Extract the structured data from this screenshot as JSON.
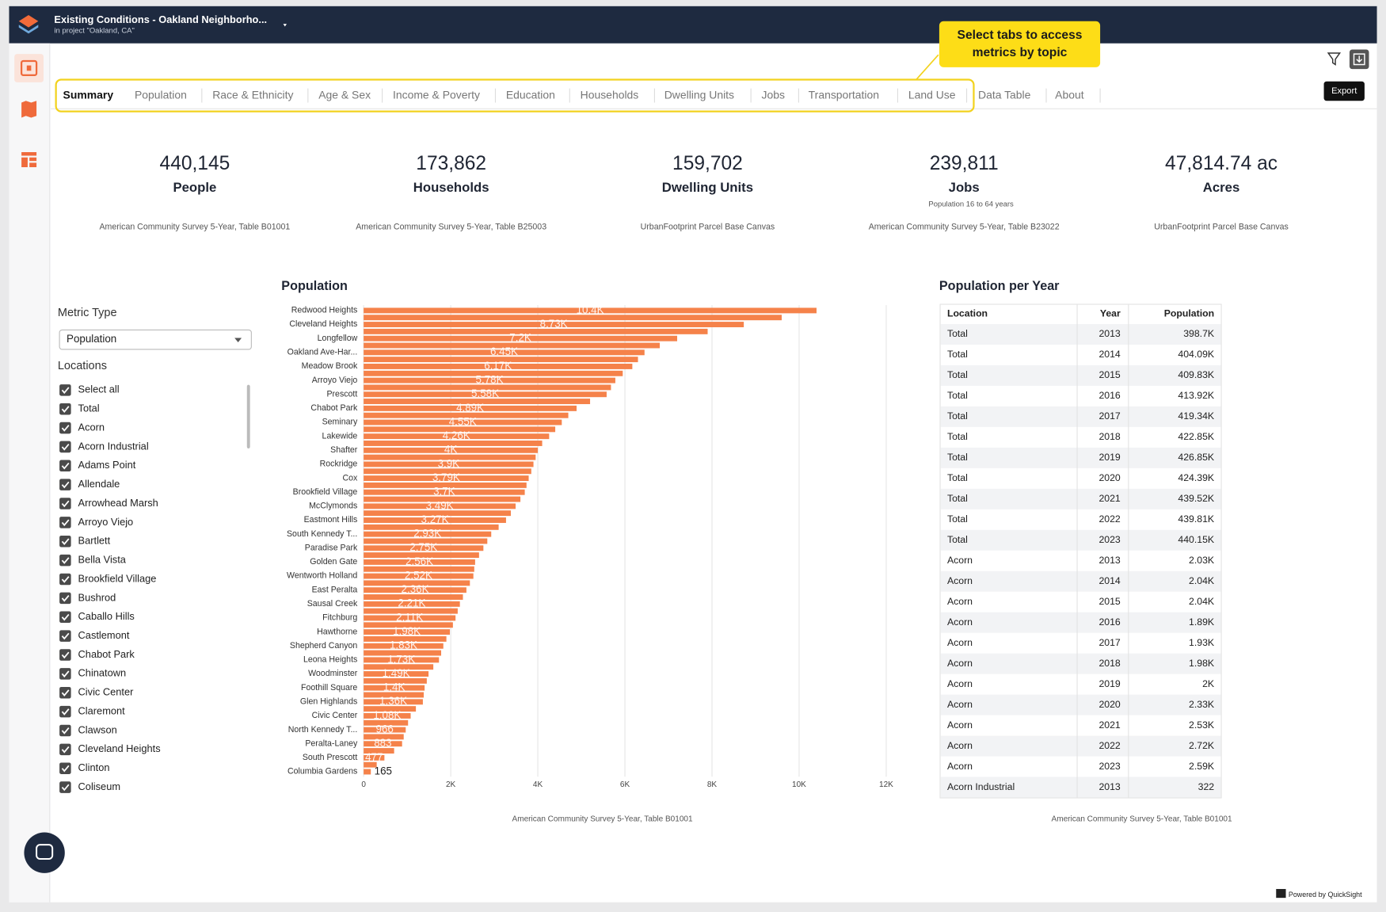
{
  "header": {
    "title": "Existing Conditions - Oakland Neighborho...",
    "subtitle": "in project \"Oakland, CA\""
  },
  "callout": [
    "Select tabs to access",
    "metrics by topic"
  ],
  "tabs": [
    "Summary",
    "Population",
    "Race & Ethnicity",
    "Age & Sex",
    "Income & Poverty",
    "Education",
    "Households",
    "Dwelling Units",
    "Jobs",
    "Transportation",
    "Land Use",
    "Data Table",
    "About"
  ],
  "tooltip": "Export",
  "kpis": [
    {
      "value": "440,145",
      "label": "People",
      "source": "American Community Survey 5-Year, Table B01001"
    },
    {
      "value": "173,862",
      "label": "Households",
      "source": "American Community Survey 5-Year, Table B25003"
    },
    {
      "value": "159,702",
      "label": "Dwelling Units",
      "source": "UrbanFootprint Parcel Base Canvas"
    },
    {
      "value": "239,811",
      "label": "Jobs",
      "note": "Population 16 to 64 years",
      "source": "American Community Survey 5-Year, Table B23022"
    },
    {
      "value": "47,814.74 ac",
      "label": "Acres",
      "source": "UrbanFootprint Parcel Base Canvas"
    }
  ],
  "filters": {
    "metric_label": "Metric Type",
    "metric_value": "Population",
    "locations_label": "Locations",
    "locations": [
      "Select all",
      "Total",
      "Acorn",
      "Acorn Industrial",
      "Adams Point",
      "Allendale",
      "Arrowhead Marsh",
      "Arroyo Viejo",
      "Bartlett",
      "Bella Vista",
      "Brookfield Village",
      "Bushrod",
      "Caballo Hills",
      "Castlemont",
      "Chabot Park",
      "Chinatown",
      "Civic Center",
      "Claremont",
      "Clawson",
      "Cleveland Heights",
      "Clinton",
      "Coliseum"
    ]
  },
  "chart_data": {
    "type": "barh",
    "title": "Population",
    "color": "#f5824a",
    "categories": [
      "Redwood Heights",
      null,
      "Cleveland Heights",
      null,
      "Longfellow",
      null,
      "Oakland Ave-Har...",
      null,
      "Meadow Brook",
      null,
      "Arroyo Viejo",
      null,
      "Prescott",
      null,
      "Chabot Park",
      null,
      "Seminary",
      null,
      "Lakewide",
      null,
      "Shafter",
      null,
      "Rockridge",
      null,
      "Cox",
      null,
      "Brookfield Village",
      null,
      "McClymonds",
      null,
      "Eastmont Hills",
      null,
      "South Kennedy T...",
      null,
      "Paradise Park",
      null,
      "Golden Gate",
      null,
      "Wentworth Holland",
      null,
      "East Peralta",
      null,
      "Sausal Creek",
      null,
      "Fitchburg",
      null,
      "Hawthorne",
      null,
      "Shepherd Canyon",
      null,
      "Leona Heights",
      null,
      "Woodminster",
      null,
      "Foothill Square",
      null,
      "Glen Highlands",
      null,
      "Civic Center",
      null,
      "North Kennedy T...",
      null,
      "Peralta-Laney",
      null,
      "South Prescott",
      null,
      "Columbia Gardens"
    ],
    "values": [
      10400,
      9600,
      8730,
      7900,
      7200,
      6800,
      6450,
      6300,
      6170,
      5950,
      5780,
      5680,
      5580,
      5200,
      4890,
      4700,
      4550,
      4400,
      4260,
      4100,
      4000,
      3950,
      3900,
      3850,
      3790,
      3740,
      3700,
      3600,
      3490,
      3380,
      3270,
      3100,
      2930,
      2840,
      2750,
      2650,
      2560,
      2540,
      2520,
      2440,
      2360,
      2280,
      2210,
      2160,
      2110,
      2050,
      1980,
      1900,
      1830,
      1780,
      1730,
      1600,
      1490,
      1450,
      1400,
      1380,
      1360,
      1200,
      1080,
      1020,
      966,
      920,
      883,
      700,
      477,
      300,
      165
    ],
    "value_labels": [
      "10.4K",
      null,
      "8.73K",
      null,
      "7.2K",
      null,
      "6.45K",
      null,
      "6.17K",
      null,
      "5.78K",
      null,
      "5.58K",
      null,
      "4.89K",
      null,
      "4.55K",
      null,
      "4.26K",
      null,
      "4K",
      null,
      "3.9K",
      null,
      "3.79K",
      null,
      "3.7K",
      null,
      "3.49K",
      null,
      "3.27K",
      null,
      "2.93K",
      null,
      "2.75K",
      null,
      "2.56K",
      null,
      "2.52K",
      null,
      "2.36K",
      null,
      "2.21K",
      null,
      "2.11K",
      null,
      "1.98K",
      null,
      "1.83K",
      null,
      "1.73K",
      null,
      "1.49K",
      null,
      "1.4K",
      null,
      "1.36K",
      null,
      "1.08K",
      null,
      "966",
      null,
      "883",
      null,
      "477",
      null,
      "165"
    ],
    "xlim": [
      0,
      12000
    ],
    "xticks": [
      0,
      {
        "value": 2000,
        "label": "2K"
      },
      {
        "value": 4000,
        "label": "4K"
      },
      {
        "value": 6000,
        "label": "6K"
      },
      {
        "value": 8000,
        "label": "8K"
      },
      {
        "value": 10000,
        "label": "10K"
      },
      {
        "value": 12000,
        "label": "12K"
      }
    ],
    "grid": true,
    "source": "American Community Survey 5-Year, Table B01001"
  },
  "table": {
    "title": "Population per Year",
    "header": [
      "Location",
      "Year",
      "Population"
    ],
    "rows": [
      [
        "Total",
        2013,
        "398.7K"
      ],
      [
        "Total",
        2014,
        "404.09K"
      ],
      [
        "Total",
        2015,
        "409.83K"
      ],
      [
        "Total",
        2016,
        "413.92K"
      ],
      [
        "Total",
        2017,
        "419.34K"
      ],
      [
        "Total",
        2018,
        "422.85K"
      ],
      [
        "Total",
        2019,
        "426.85K"
      ],
      [
        "Total",
        2020,
        "424.39K"
      ],
      [
        "Total",
        2021,
        "439.52K"
      ],
      [
        "Total",
        2022,
        "439.81K"
      ],
      [
        "Total",
        2023,
        "440.15K"
      ],
      [
        "Acorn",
        2013,
        "2.03K"
      ],
      [
        "Acorn",
        2014,
        "2.04K"
      ],
      [
        "Acorn",
        2015,
        "2.04K"
      ],
      [
        "Acorn",
        2016,
        "1.89K"
      ],
      [
        "Acorn",
        2017,
        "1.93K"
      ],
      [
        "Acorn",
        2018,
        "1.98K"
      ],
      [
        "Acorn",
        2019,
        "2K"
      ],
      [
        "Acorn",
        2020,
        "2.33K"
      ],
      [
        "Acorn",
        2021,
        "2.53K"
      ],
      [
        "Acorn",
        2022,
        "2.72K"
      ],
      [
        "Acorn",
        2023,
        "2.59K"
      ],
      [
        "Acorn Industrial",
        2013,
        "322"
      ]
    ],
    "source": "American Community Survey 5-Year, Table B01001"
  },
  "footer": "Powered by QuickSight"
}
